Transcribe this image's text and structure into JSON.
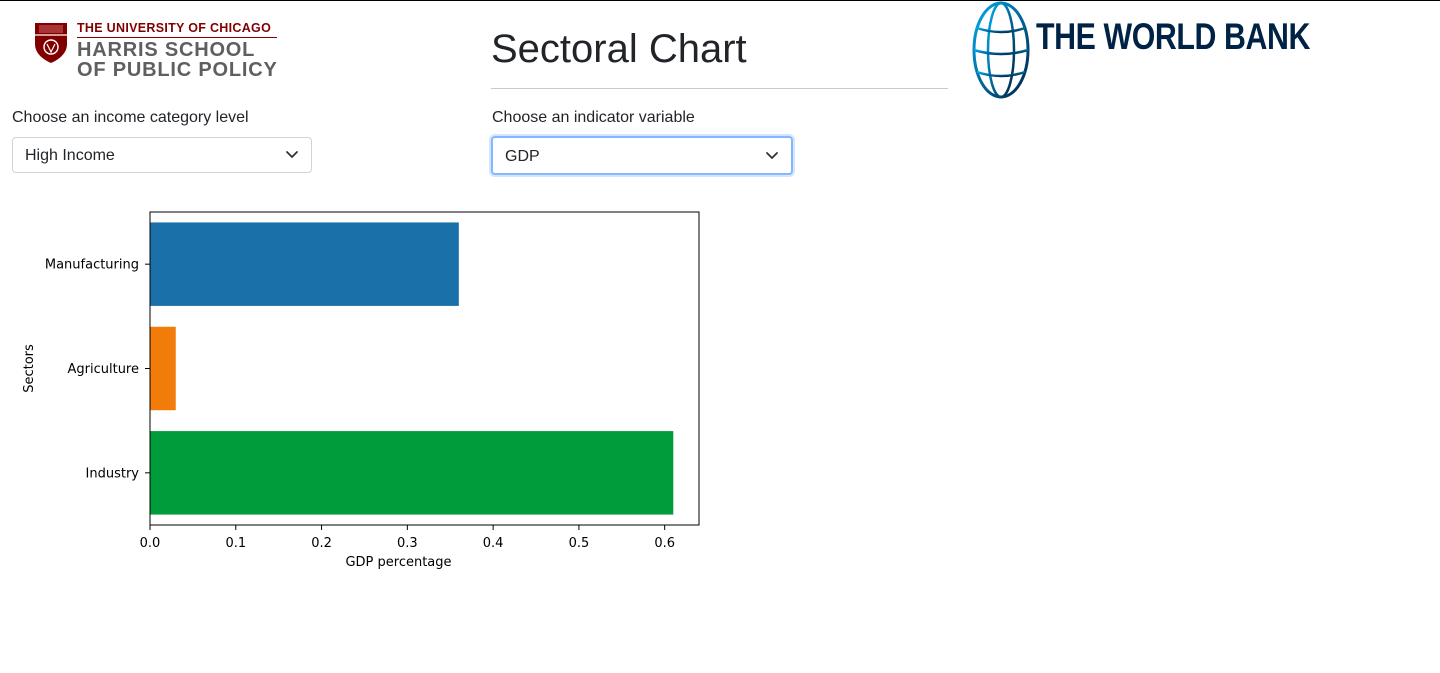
{
  "header": {
    "university": "THE UNIVERSITY OF CHICAGO",
    "school_line1": "HARRIS SCHOOL",
    "school_line2": "OF PUBLIC POLICY",
    "title": "Sectoral Chart",
    "partner": "THE WORLD BANK"
  },
  "controls": {
    "income": {
      "label": "Choose an income category level",
      "value": "High Income"
    },
    "indicator": {
      "label": "Choose an indicator variable",
      "value": "GDP"
    }
  },
  "colors": {
    "harris_maroon": "#800000",
    "worldbank_navy": "#002244",
    "focus_ring": "#86b7fe"
  },
  "icons": {
    "select_arrow": "chevron-down-icon",
    "harris_logo": "shield-icon",
    "worldbank_logo": "globe-icon"
  },
  "chart_data": {
    "type": "bar",
    "orientation": "horizontal",
    "categories": [
      "Manufacturing",
      "Agriculture",
      "Industry"
    ],
    "values": [
      0.36,
      0.03,
      0.61
    ],
    "colors": [
      "#1a70a8",
      "#f17c0a",
      "#009b3a"
    ],
    "xlabel": "GDP percentage",
    "ylabel": "Sectors",
    "xlim": [
      0,
      0.64
    ],
    "xticks": [
      "0.0",
      "0.1",
      "0.2",
      "0.3",
      "0.4",
      "0.5",
      "0.6"
    ],
    "grid": false
  }
}
